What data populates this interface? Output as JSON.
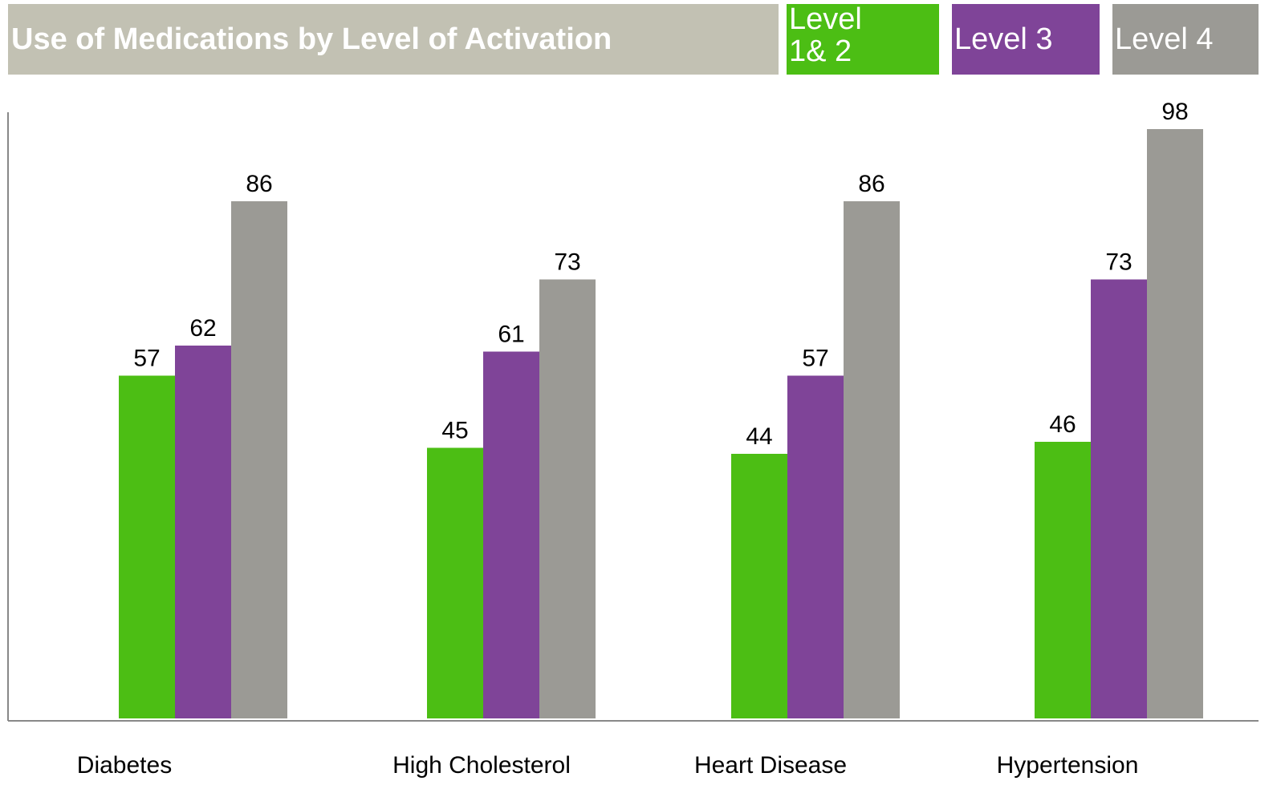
{
  "chart_data": {
    "type": "bar",
    "title": "Use of Medications by Level of Activation",
    "categories": [
      "Diabetes",
      "High Cholesterol",
      "Heart Disease",
      "Hypertension"
    ],
    "series": [
      {
        "name": "Level 1& 2",
        "color": "#4cbe14",
        "values": [
          57,
          45,
          44,
          46
        ]
      },
      {
        "name": "Level 3",
        "color": "#7f4498",
        "values": [
          62,
          61,
          57,
          73
        ]
      },
      {
        "name": "Level 4",
        "color": "#9b9a95",
        "values": [
          86,
          73,
          86,
          98
        ]
      }
    ],
    "ylim": [
      0,
      100
    ]
  }
}
